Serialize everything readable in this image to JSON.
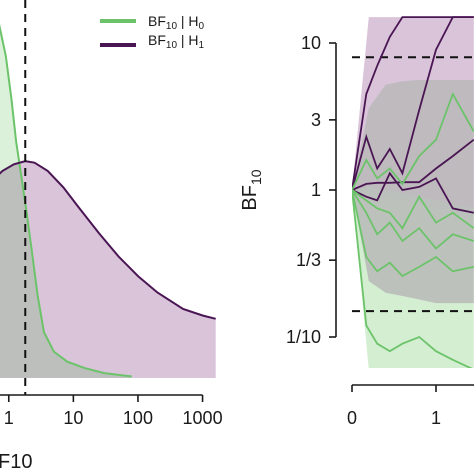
{
  "colors": {
    "h0": "#6cc36a",
    "h1": "#4a1553",
    "h0_band_outer": "#cfeccd",
    "h1_band_outer": "#d9c4da",
    "overlap": "#b9b9b9"
  },
  "chart_data": [
    {
      "type": "area",
      "xscale": "log",
      "xticks": [
        "1",
        "10",
        "100",
        "1000"
      ],
      "xtick_values": [
        1,
        10,
        100,
        1000
      ],
      "xlabel_visible": "F10",
      "xlim": [
        0.55,
        2000
      ],
      "ylim": [
        0,
        1.15
      ],
      "vline_x": 1.8,
      "legend": {
        "position": "top-right",
        "entries": [
          {
            "main": "BF",
            "sub": "10",
            "rest": " | H",
            "sub2": "0",
            "color_key": "h0"
          },
          {
            "main": "BF",
            "sub": "10",
            "rest": " | H",
            "sub2": "1",
            "color_key": "h1"
          }
        ]
      },
      "series": [
        {
          "name": "BF10 | H0",
          "x": [
            0.55,
            0.7,
            0.9,
            1.1,
            1.3,
            1.6,
            1.9,
            2.3,
            2.8,
            3.5,
            5,
            8,
            15,
            30,
            80
          ],
          "y": [
            1.1,
            1.08,
            0.98,
            0.85,
            0.72,
            0.6,
            0.5,
            0.38,
            0.25,
            0.14,
            0.08,
            0.05,
            0.03,
            0.015,
            0.005
          ]
        },
        {
          "name": "BF10 | H1",
          "x": [
            0.55,
            0.8,
            1.2,
            1.8,
            2.5,
            4,
            7,
            12,
            25,
            50,
            100,
            200,
            500,
            1000,
            1600
          ],
          "y": [
            0.6,
            0.63,
            0.65,
            0.66,
            0.655,
            0.63,
            0.58,
            0.52,
            0.44,
            0.37,
            0.31,
            0.26,
            0.21,
            0.19,
            0.18
          ]
        }
      ]
    },
    {
      "type": "line",
      "yscale": "log",
      "ylabel": "BF10",
      "yticks": [
        "1/10",
        "1/3",
        "1",
        "3",
        "10"
      ],
      "ytick_values": [
        0.1,
        0.3333,
        1,
        3,
        10
      ],
      "xticks": [
        "0",
        "1"
      ],
      "xtick_values": [
        0,
        1
      ],
      "xlim": [
        -0.02,
        1.45
      ],
      "ylim": [
        0.065,
        15
      ],
      "hlines": [
        8,
        0.15
      ],
      "bands": {
        "h1_outer": {
          "x": [
            0,
            0.2,
            0.4,
            0.6,
            0.8,
            1.0,
            1.2,
            1.45
          ],
          "lo": [
            1,
            0.95,
            0.9,
            0.85,
            0.8,
            0.75,
            0.7,
            0.65
          ],
          "hi": [
            1,
            15,
            15,
            15,
            15,
            15,
            15,
            15
          ]
        },
        "h0_outer": {
          "x": [
            0,
            0.2,
            0.4,
            0.6,
            0.8,
            1.0,
            1.2,
            1.45
          ],
          "lo": [
            1,
            0.06,
            0.06,
            0.06,
            0.06,
            0.06,
            0.06,
            0.06
          ],
          "hi": [
            1,
            1.05,
            1.0,
            0.95,
            0.9,
            0.85,
            0.8,
            0.75
          ]
        },
        "overlap": {
          "x": [
            0,
            0.2,
            0.4,
            0.6,
            0.8,
            1.0,
            1.2,
            1.45
          ],
          "lo": [
            1,
            0.24,
            0.2,
            0.19,
            0.18,
            0.17,
            0.17,
            0.17
          ],
          "hi": [
            1,
            3.6,
            5.2,
            5.5,
            5.6,
            5.6,
            5.6,
            5.6
          ]
        }
      },
      "series": [
        {
          "name": "h1_a",
          "color_key": "h1",
          "x": [
            0,
            0.17,
            0.3,
            0.45,
            0.6,
            0.8,
            1.0,
            1.2,
            1.45
          ],
          "y": [
            1,
            2.3,
            1.4,
            1.9,
            1.3,
            3.5,
            9,
            15,
            15
          ]
        },
        {
          "name": "h1_b",
          "color_key": "h1",
          "x": [
            0,
            0.17,
            0.3,
            0.45,
            0.6,
            0.8,
            1.0,
            1.2,
            1.45
          ],
          "y": [
            1,
            4.5,
            7,
            11,
            15,
            15,
            15,
            15,
            15
          ]
        },
        {
          "name": "h1_c",
          "color_key": "h1",
          "x": [
            0,
            0.17,
            0.3,
            0.45,
            0.6,
            0.8,
            1.0,
            1.2,
            1.45
          ],
          "y": [
            1,
            1.1,
            1.12,
            1.12,
            1.13,
            1.13,
            1.4,
            1.7,
            2.2
          ]
        },
        {
          "name": "h1_d",
          "color_key": "h1",
          "x": [
            0,
            0.17,
            0.3,
            0.45,
            0.6,
            0.8,
            1.0,
            1.2,
            1.45
          ],
          "y": [
            1,
            0.9,
            0.85,
            1.3,
            1.0,
            1.05,
            1.2,
            0.75,
            0.7
          ]
        },
        {
          "name": "h0_a",
          "color_key": "h0",
          "x": [
            0,
            0.17,
            0.3,
            0.45,
            0.6,
            0.8,
            1.0,
            1.2,
            1.45
          ],
          "y": [
            1,
            1.6,
            1.2,
            1.4,
            1.1,
            1.7,
            2.2,
            4.5,
            2.5
          ]
        },
        {
          "name": "h0_b",
          "color_key": "h0",
          "x": [
            0,
            0.17,
            0.3,
            0.45,
            0.6,
            0.8,
            1.0,
            1.2,
            1.45
          ],
          "y": [
            1,
            0.85,
            0.75,
            0.7,
            0.55,
            0.9,
            0.6,
            0.7,
            0.55
          ]
        },
        {
          "name": "h0_c",
          "color_key": "h0",
          "x": [
            0,
            0.17,
            0.3,
            0.45,
            0.6,
            0.8,
            1.0,
            1.2,
            1.45
          ],
          "y": [
            1,
            0.7,
            0.5,
            0.6,
            0.45,
            0.55,
            0.4,
            0.5,
            0.45
          ]
        },
        {
          "name": "h0_d",
          "color_key": "h0",
          "x": [
            0,
            0.17,
            0.3,
            0.45,
            0.6,
            0.8,
            1.0,
            1.2,
            1.45
          ],
          "y": [
            1,
            0.35,
            0.28,
            0.32,
            0.26,
            0.3,
            0.35,
            0.28,
            0.3
          ]
        },
        {
          "name": "h0_e",
          "color_key": "h0",
          "x": [
            0,
            0.17,
            0.3,
            0.45,
            0.6,
            0.8,
            1.0,
            1.2,
            1.45
          ],
          "y": [
            1,
            0.12,
            0.09,
            0.08,
            0.09,
            0.1,
            0.08,
            0.07,
            0.06
          ]
        }
      ]
    }
  ]
}
